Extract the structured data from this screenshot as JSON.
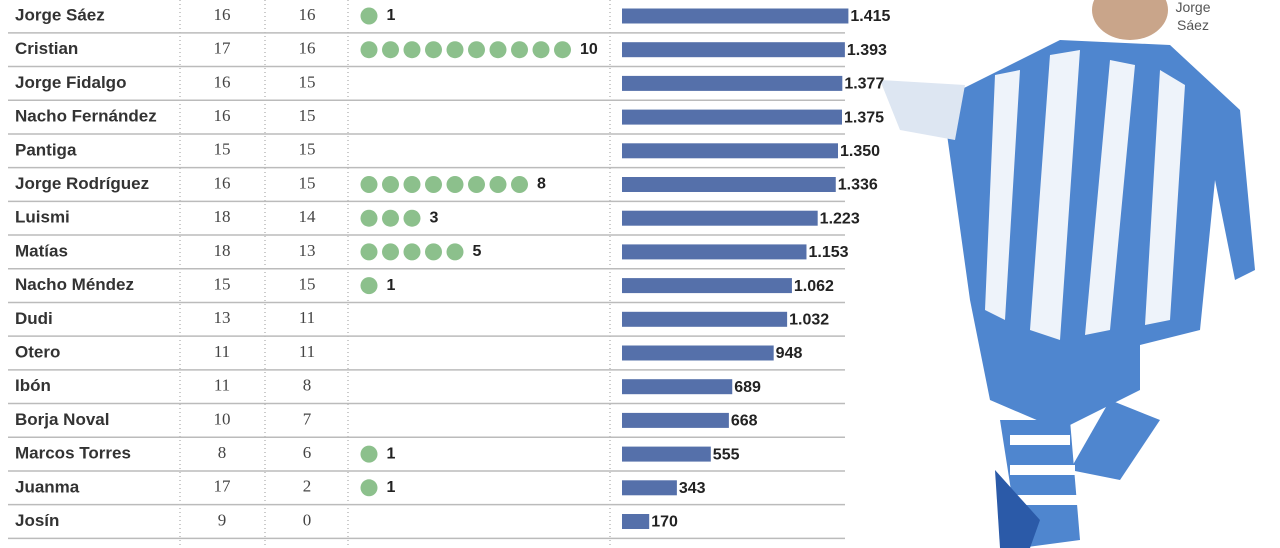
{
  "photo_caption": "Jorge Sáez",
  "table": {
    "rows": [
      {
        "name": "Jorge Sáez",
        "games": 16,
        "starts": 16,
        "goals": 1,
        "minutes": 1415,
        "minutes_label": "1.415"
      },
      {
        "name": "Cristian",
        "games": 17,
        "starts": 16,
        "goals": 10,
        "minutes": 1393,
        "minutes_label": "1.393"
      },
      {
        "name": "Jorge Fidalgo",
        "games": 16,
        "starts": 15,
        "goals": null,
        "minutes": 1377,
        "minutes_label": "1.377"
      },
      {
        "name": "Nacho Fernández",
        "games": 16,
        "starts": 15,
        "goals": null,
        "minutes": 1375,
        "minutes_label": "1.375"
      },
      {
        "name": "Pantiga",
        "games": 15,
        "starts": 15,
        "goals": null,
        "minutes": 1350,
        "minutes_label": "1.350"
      },
      {
        "name": "Jorge Rodríguez",
        "games": 16,
        "starts": 15,
        "goals": 8,
        "minutes": 1336,
        "minutes_label": "1.336"
      },
      {
        "name": "Luismi",
        "games": 18,
        "starts": 14,
        "goals": 3,
        "minutes": 1223,
        "minutes_label": "1.223"
      },
      {
        "name": "Matías",
        "games": 18,
        "starts": 13,
        "goals": 5,
        "minutes": 1153,
        "minutes_label": "1.153"
      },
      {
        "name": "Nacho Méndez",
        "games": 15,
        "starts": 15,
        "goals": 1,
        "minutes": 1062,
        "minutes_label": "1.062"
      },
      {
        "name": "Dudi",
        "games": 13,
        "starts": 11,
        "goals": null,
        "minutes": 1032,
        "minutes_label": "1.032"
      },
      {
        "name": "Otero",
        "games": 11,
        "starts": 11,
        "goals": null,
        "minutes": 948,
        "minutes_label": "948"
      },
      {
        "name": "Ibón",
        "games": 11,
        "starts": 8,
        "goals": null,
        "minutes": 689,
        "minutes_label": "689"
      },
      {
        "name": "Borja Noval",
        "games": 10,
        "starts": 7,
        "goals": null,
        "minutes": 668,
        "minutes_label": "668"
      },
      {
        "name": "Marcos Torres",
        "games": 8,
        "starts": 6,
        "goals": 1,
        "minutes": 555,
        "minutes_label": "555"
      },
      {
        "name": "Juanma",
        "games": 17,
        "starts": 2,
        "goals": 1,
        "minutes": 343,
        "minutes_label": "343"
      },
      {
        "name": "Josín",
        "games": 9,
        "starts": 0,
        "goals": null,
        "minutes": 170,
        "minutes_label": "170"
      }
    ]
  }
}
